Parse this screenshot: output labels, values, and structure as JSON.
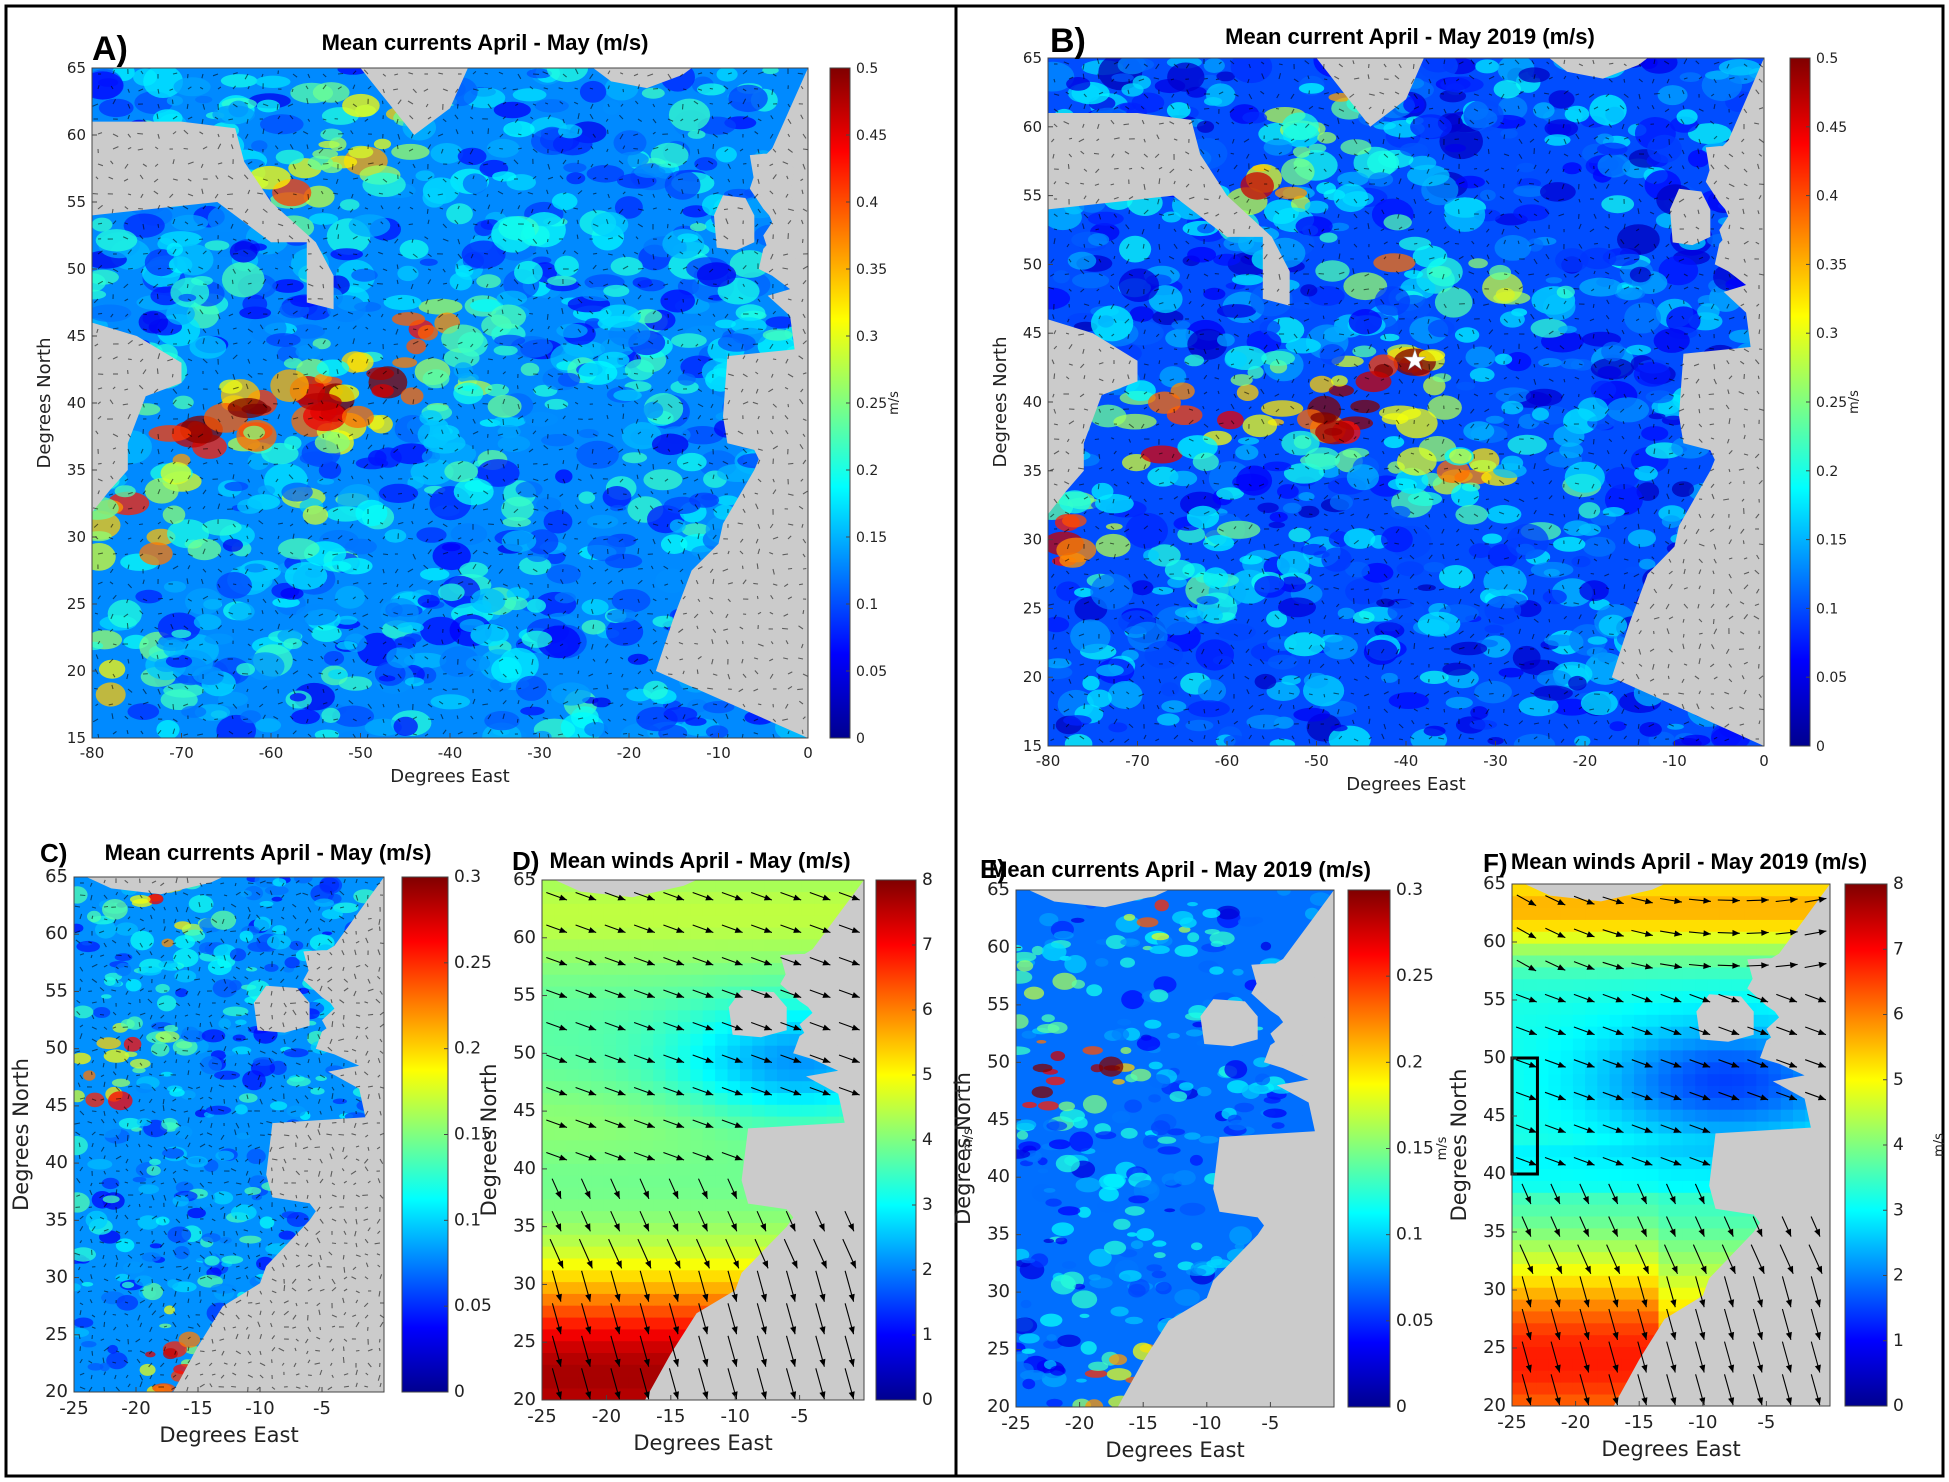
{
  "colormap": [
    "#00008f",
    "#0000ff",
    "#0080ff",
    "#00ffff",
    "#80ff80",
    "#ffff00",
    "#ff8000",
    "#ff0000",
    "#800000"
  ],
  "land_color": "#cbcbcb",
  "chart_data": [
    {
      "panel": "A)",
      "type": "heatmap",
      "title": "Mean currents April - May (m/s)",
      "xlabel": "Degrees East",
      "ylabel": "Degrees North",
      "xlim": [
        -80,
        0
      ],
      "ylim": [
        15,
        65
      ],
      "xticks": [
        -80,
        -70,
        -60,
        -50,
        -40,
        -30,
        -20,
        -10,
        0
      ],
      "yticks": [
        15,
        20,
        25,
        30,
        35,
        40,
        45,
        50,
        55,
        60,
        65
      ],
      "colorbar": {
        "min": 0,
        "max": 0.5,
        "ticks": [
          0,
          0.05,
          0.1,
          0.15,
          0.2,
          0.25,
          0.3,
          0.35,
          0.4,
          0.45,
          0.5
        ],
        "label": "m/s"
      },
      "arrows": "dense",
      "hotspots": [
        [
          -75,
          31,
          0.5
        ],
        [
          -68,
          37.5,
          0.5
        ],
        [
          -60,
          40,
          0.5
        ],
        [
          -52,
          40,
          0.45
        ],
        [
          -45,
          42,
          0.45
        ],
        [
          -42,
          46,
          0.4
        ],
        [
          -55,
          56,
          0.4
        ],
        [
          -48,
          60,
          0.35
        ],
        [
          -35,
          38,
          0.25
        ],
        [
          -55,
          32,
          0.2
        ],
        [
          -78,
          20,
          0.3
        ]
      ],
      "background": 0.13
    },
    {
      "panel": "B)",
      "type": "heatmap",
      "title": "Mean current April - May 2019 (m/s)",
      "xlabel": "Degrees East",
      "ylabel": "Degrees North",
      "xlim": [
        -80,
        0
      ],
      "ylim": [
        15,
        65
      ],
      "xticks": [
        -80,
        -70,
        -60,
        -50,
        -40,
        -30,
        -20,
        -10,
        0
      ],
      "yticks": [
        15,
        20,
        25,
        30,
        35,
        40,
        45,
        50,
        55,
        60,
        65
      ],
      "colorbar": {
        "min": 0,
        "max": 0.5,
        "ticks": [
          0,
          0.05,
          0.1,
          0.15,
          0.2,
          0.25,
          0.3,
          0.35,
          0.4,
          0.45,
          0.5
        ],
        "label": "m/s"
      },
      "arrows": "dense",
      "star": [
        -39,
        43
      ],
      "hotspots": [
        [
          -77,
          30,
          0.5
        ],
        [
          -70,
          37,
          0.5
        ],
        [
          -62,
          39.5,
          0.5
        ],
        [
          -52,
          40,
          0.5
        ],
        [
          -45,
          39,
          0.45
        ],
        [
          -40,
          42,
          0.45
        ],
        [
          -35,
          35,
          0.4
        ],
        [
          -30,
          48,
          0.35
        ],
        [
          -55,
          56,
          0.4
        ],
        [
          -48,
          61,
          0.35
        ],
        [
          -43,
          50,
          0.35
        ],
        [
          -60,
          28,
          0.3
        ],
        [
          -25,
          33,
          0.3
        ]
      ],
      "background": 0.1
    },
    {
      "panel": "C)",
      "type": "heatmap",
      "title": "Mean currents April - May (m/s)",
      "xlabel": "Degrees East",
      "ylabel": "Degrees North",
      "xlim": [
        -25,
        0
      ],
      "ylim": [
        20,
        65
      ],
      "xticks": [
        -25,
        -20,
        -15,
        -10,
        -5
      ],
      "yticks": [
        20,
        25,
        30,
        35,
        40,
        45,
        50,
        55,
        60,
        65
      ],
      "colorbar": {
        "min": 0,
        "max": 0.3,
        "ticks": [
          0,
          0.05,
          0.1,
          0.15,
          0.2,
          0.25,
          0.3
        ],
        "label": ""
      },
      "arrows": "dense",
      "hotspots": [
        [
          -23,
          48,
          0.25
        ],
        [
          -20,
          50,
          0.25
        ],
        [
          -22,
          45,
          0.2
        ],
        [
          -18,
          60,
          0.2
        ],
        [
          -17,
          63,
          0.25
        ],
        [
          -18,
          22,
          0.3
        ],
        [
          -16,
          25,
          0.25
        ]
      ],
      "background": 0.08
    },
    {
      "panel": "D)",
      "type": "heatmap",
      "title": "Mean winds April - May (m/s)",
      "xlabel": "Degrees East",
      "ylabel": "Degrees North",
      "xlim": [
        -25,
        0
      ],
      "ylim": [
        20,
        65
      ],
      "xticks": [
        -25,
        -20,
        -15,
        -10,
        -5
      ],
      "yticks": [
        20,
        25,
        30,
        35,
        40,
        45,
        50,
        55,
        60,
        65
      ],
      "colorbar": {
        "min": 0,
        "max": 8,
        "ticks": [
          0,
          1,
          2,
          3,
          4,
          5,
          6,
          7,
          8
        ],
        "label": "m/s"
      },
      "arrows": "wind",
      "field": "wind_climatology"
    },
    {
      "panel": "E)",
      "type": "heatmap",
      "title": "Mean currents April - May 2019 (m/s)",
      "xlabel": "Degrees East",
      "ylabel": "Degrees North",
      "xlim": [
        -25,
        0
      ],
      "ylim": [
        20,
        65
      ],
      "xticks": [
        -25,
        -20,
        -15,
        -10,
        -5
      ],
      "yticks": [
        20,
        25,
        30,
        35,
        40,
        45,
        50,
        55,
        60,
        65
      ],
      "colorbar": {
        "min": 0,
        "max": 0.3,
        "ticks": [
          0,
          0.05,
          0.1,
          0.15,
          0.2,
          0.25,
          0.3
        ],
        "label": "m/s"
      },
      "arrows": "none",
      "hotspots": [
        [
          -24,
          47,
          0.3
        ],
        [
          -22,
          50,
          0.3
        ],
        [
          -18,
          49,
          0.3
        ],
        [
          -20,
          54,
          0.25
        ],
        [
          -14,
          63,
          0.25
        ],
        [
          -24,
          56,
          0.25
        ],
        [
          -18,
          22,
          0.3
        ],
        [
          -15,
          25,
          0.25
        ]
      ],
      "background": 0.07
    },
    {
      "panel": "F)",
      "type": "heatmap",
      "title": "Mean winds April - May 2019 (m/s)",
      "xlabel": "Degrees East",
      "ylabel": "Degrees North",
      "xlim": [
        -25,
        0
      ],
      "ylim": [
        20,
        65
      ],
      "xticks": [
        -25,
        -20,
        -15,
        -10,
        -5
      ],
      "yticks": [
        20,
        25,
        30,
        35,
        40,
        45,
        50,
        55,
        60,
        65
      ],
      "colorbar": {
        "min": 0,
        "max": 8,
        "ticks": [
          0,
          1,
          2,
          3,
          4,
          5,
          6,
          7,
          8
        ],
        "label": "m/s"
      },
      "arrows": "wind",
      "field": "wind_2019",
      "box": {
        "lon": [
          -25,
          -23
        ],
        "lat": [
          40,
          50
        ]
      }
    }
  ]
}
